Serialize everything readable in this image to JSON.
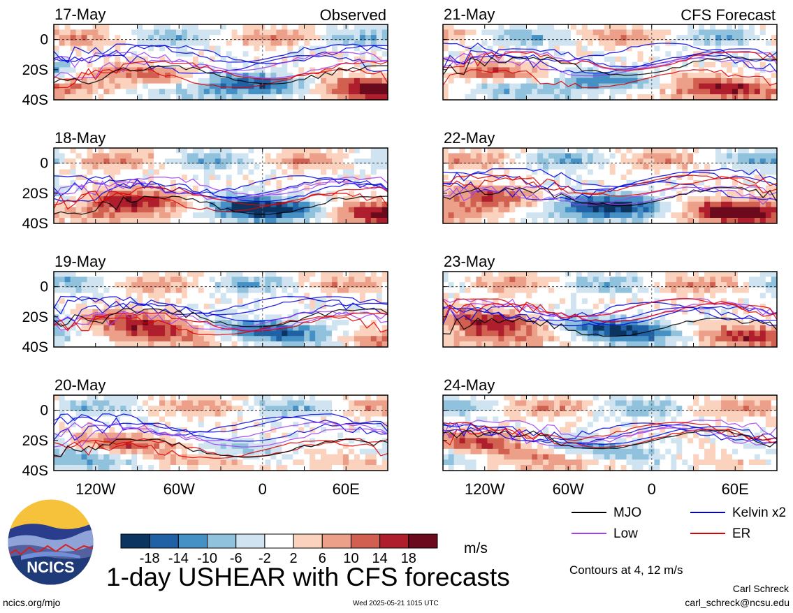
{
  "chart_data": {
    "type": "heatmap",
    "title": "1-day USHEAR with CFS forecasts",
    "units": "m/s",
    "column_titles": {
      "observed": "Observed",
      "forecast": "CFS Forecast"
    },
    "x_ticks": [
      "120W",
      "60W",
      "0",
      "60E"
    ],
    "x_tick_values": [
      -120,
      -60,
      0,
      60
    ],
    "y_ticks": [
      "0",
      "20S",
      "40S"
    ],
    "y_tick_values": [
      0,
      -20,
      -40
    ],
    "xlim": [
      -150,
      90
    ],
    "ylim": [
      -40,
      10
    ],
    "colorbar": {
      "labels": [
        "-18",
        "-14",
        "-10",
        "-6",
        "-2",
        "2",
        "6",
        "10",
        "14",
        "18"
      ],
      "colors": [
        "#0b3560",
        "#2060a5",
        "#4590c5",
        "#90c2dd",
        "#cfe4f0",
        "#ffffff",
        "#fbd2bd",
        "#eca08a",
        "#d26050",
        "#ae1e2c",
        "#6a0a1c"
      ]
    },
    "legend": [
      {
        "name": "MJO",
        "color": "#000000"
      },
      {
        "name": "Kelvin x2",
        "color": "#0000dd"
      },
      {
        "name": "Low",
        "color": "#a040f0"
      },
      {
        "name": "ER",
        "color": "#dd0000"
      }
    ],
    "panels": [
      {
        "date": "17-May",
        "column": "observed",
        "row": 0
      },
      {
        "date": "18-May",
        "column": "observed",
        "row": 1
      },
      {
        "date": "19-May",
        "column": "observed",
        "row": 2
      },
      {
        "date": "20-May",
        "column": "observed",
        "row": 3
      },
      {
        "date": "21-May",
        "column": "forecast",
        "row": 0
      },
      {
        "date": "22-May",
        "column": "forecast",
        "row": 1
      },
      {
        "date": "23-May",
        "column": "forecast",
        "row": 2
      },
      {
        "date": "24-May",
        "column": "forecast",
        "row": 3
      }
    ]
  },
  "footer": {
    "logo_text": "NCICS",
    "contours_note": "Contours at 4, 12 m/s",
    "site": "ncics.org/mjo",
    "timestamp": "Wed 2025-05-21 1015 UTC",
    "author": "Carl Schreck",
    "email": "carl_schreck@ncsu.edu"
  }
}
